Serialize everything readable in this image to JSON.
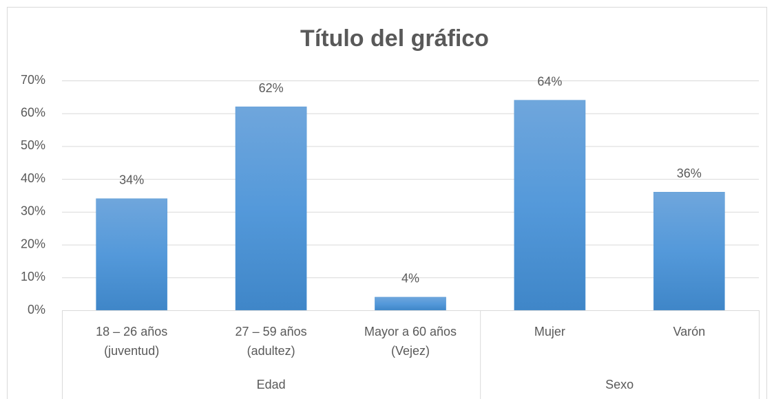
{
  "chart_data": {
    "type": "bar",
    "title": "Título del gráfico",
    "groups": [
      {
        "name": "Edad",
        "categories": [
          "18 – 26 años (juventud)",
          "27 – 59 años (adultez)",
          "Mayor a 60 años (Vejez)"
        ],
        "values": [
          34,
          62,
          4
        ],
        "value_labels": [
          "34%",
          "62%",
          "4%"
        ]
      },
      {
        "name": "Sexo",
        "categories": [
          "Mujer",
          "Varón"
        ],
        "values": [
          64,
          36
        ],
        "value_labels": [
          "64%",
          "36%"
        ]
      }
    ],
    "color": "#5b9bd5",
    "ylim": [
      0,
      70
    ],
    "yticks": [
      {
        "value": 0,
        "label": "0%"
      },
      {
        "value": 10,
        "label": "10%"
      },
      {
        "value": 20,
        "label": "20%"
      },
      {
        "value": 30,
        "label": "30%"
      },
      {
        "value": 40,
        "label": "40%"
      },
      {
        "value": 50,
        "label": "50%"
      },
      {
        "value": 60,
        "label": "60%"
      },
      {
        "value": 70,
        "label": "70%"
      }
    ],
    "grid": true
  }
}
